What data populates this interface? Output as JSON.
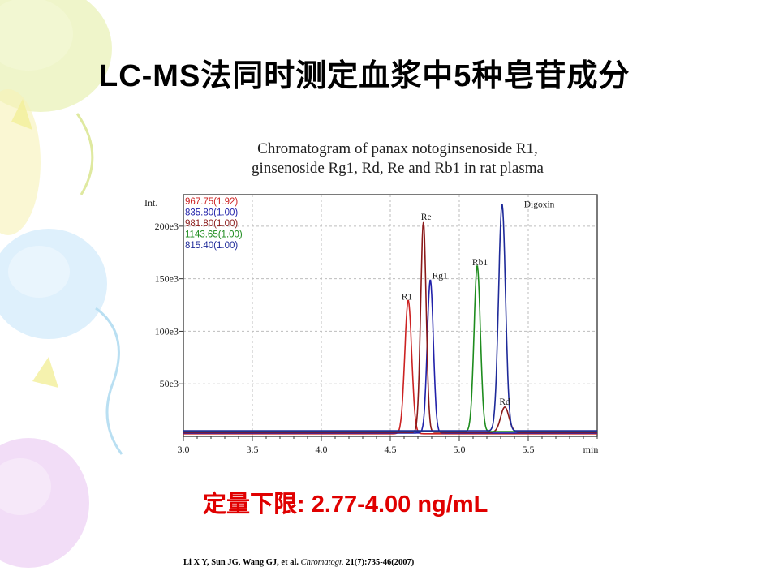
{
  "slide": {
    "title": "LC-MS法同时测定血浆中5种皂苷成分",
    "lod_label": "定量下限",
    "lod_value": ": 2.77-4.00 ng/mL",
    "citation_authors": "Li X Y, Sun JG, Wang GJ, et al.",
    "citation_journal": "Chromatogr.",
    "citation_ref": "21(7):735-46(2007)"
  },
  "colors": {
    "lod": "#e00000",
    "series": [
      "#cc2222",
      "#2222aa",
      "#8b1a1a",
      "#1e8c1e",
      "#1e2a99"
    ]
  },
  "chart_data": {
    "type": "line",
    "title_line1": "Chromatogram of panax notoginsenoside R1,",
    "title_line2": "ginsenoside Rg1, Rd, Re and Rb1 in rat plasma",
    "xlabel": "min",
    "ylabel": "Int.",
    "xlim": [
      3.0,
      6.0
    ],
    "ylim": [
      0,
      230000
    ],
    "x_ticks": [
      "3.0",
      "3.5",
      "4.0",
      "4.5",
      "5.0",
      "5.5",
      "min"
    ],
    "x_tick_values": [
      3.0,
      3.5,
      4.0,
      4.5,
      5.0,
      5.5
    ],
    "y_ticks": [
      {
        "label": "50e3",
        "value": 50000
      },
      {
        "label": "100e3",
        "value": 100000
      },
      {
        "label": "150e3",
        "value": 150000
      },
      {
        "label": "200e3",
        "value": 200000
      }
    ],
    "grid": true,
    "legend_position": "top-left",
    "series": [
      {
        "name": "967.75(1.92)",
        "color": "#cc2222",
        "peaks": [
          {
            "t": 4.63,
            "h": 127000,
            "w": 0.025
          }
        ]
      },
      {
        "name": "835.80(1.00)",
        "color": "#2222aa",
        "peaks": [
          {
            "t": 4.79,
            "h": 146000,
            "w": 0.022
          }
        ]
      },
      {
        "name": "981.80(1.00)",
        "color": "#8b1a1a",
        "peaks": [
          {
            "t": 4.74,
            "h": 200000,
            "w": 0.02
          },
          {
            "t": 5.33,
            "h": 24000,
            "w": 0.03
          }
        ]
      },
      {
        "name": "1143.65(1.00)",
        "color": "#1e8c1e",
        "peaks": [
          {
            "t": 5.13,
            "h": 158000,
            "w": 0.023
          }
        ]
      },
      {
        "name": "815.40(1.00)",
        "color": "#1e2a99",
        "peaks": [
          {
            "t": 5.31,
            "h": 216000,
            "w": 0.025
          }
        ]
      }
    ],
    "annotations": [
      {
        "label": "R1",
        "x": 4.62,
        "y": 130000
      },
      {
        "label": "Re",
        "x": 4.76,
        "y": 206000
      },
      {
        "label": "Rg1",
        "x": 4.86,
        "y": 150000
      },
      {
        "label": "Rb1",
        "x": 5.15,
        "y": 163000
      },
      {
        "label": "Digoxin",
        "x": 5.58,
        "y": 218000
      },
      {
        "label": "Rd",
        "x": 5.33,
        "y": 30000
      }
    ]
  }
}
